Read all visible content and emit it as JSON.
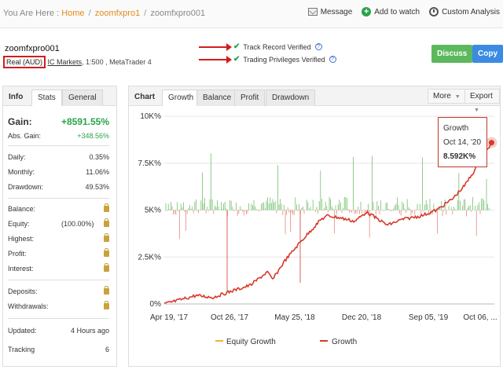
{
  "breadcrumb": {
    "prefix": "You Are Here :",
    "home": "Home",
    "section": "zoomfxpro1",
    "current": "zoomfxpro001"
  },
  "top_actions": {
    "message": "Message",
    "add_watch": "Add to watch",
    "custom_analysis": "Custom Analysis"
  },
  "account": {
    "name": "zoomfxpro001",
    "type": "Real (AUD)",
    "broker": "IC Markets",
    "details": ", 1:500 , MetaTrader 4"
  },
  "verification": {
    "track_record": "Track Record Verified",
    "trading_privileges": "Trading Privileges Verified"
  },
  "buttons": {
    "discuss": "Discuss",
    "copy": "Copy"
  },
  "stats_tabs": [
    "Info",
    "Stats",
    "General"
  ],
  "stats": {
    "gain_label": "Gain:",
    "gain_value": "+8591.55%",
    "abs_gain_label": "Abs. Gain:",
    "abs_gain_value": "+348.56%",
    "daily_label": "Daily:",
    "daily_value": "0.35%",
    "monthly_label": "Monthly:",
    "monthly_value": "11.06%",
    "drawdown_label": "Drawdown:",
    "drawdown_value": "49.53%",
    "balance_label": "Balance:",
    "equity_label": "Equity:",
    "equity_value": "(100.00%)",
    "highest_label": "Highest:",
    "profit_label": "Profit:",
    "interest_label": "Interest:",
    "deposits_label": "Deposits:",
    "withdrawals_label": "Withdrawals:",
    "updated_label": "Updated:",
    "updated_value": "4 Hours ago",
    "tracking_label": "Tracking",
    "tracking_value": "6"
  },
  "chart_tabs": [
    "Chart",
    "Growth",
    "Balance",
    "Profit",
    "Drawdown"
  ],
  "chart_tools": {
    "more": "More",
    "export": "Export"
  },
  "tooltip": {
    "series": "Growth",
    "date": "Oct 14, '20",
    "value": "8.592K%"
  },
  "colors": {
    "growth": "#d63a2a",
    "equity": "#f0b432",
    "bars": "#5db653",
    "gain": "#2aa34a"
  },
  "chart_data": {
    "type": "line",
    "title": "",
    "xlabel": "",
    "ylabel": "",
    "ylim": [
      0,
      10000
    ],
    "y_ticks": [
      "0%",
      "2.5K%",
      "5K%",
      "7.5K%",
      "10K%"
    ],
    "x_ticks": [
      "Apr 19, '17",
      "Oct 26, '17",
      "May 25, '18",
      "Dec 20, '18",
      "Sep 05, '19",
      "Oct 06, ..."
    ],
    "legend": [
      "Equity Growth",
      "Growth"
    ],
    "legend_position": "bottom",
    "grid": true,
    "series": [
      {
        "name": "Growth",
        "x": [
          "2017-04-19",
          "2017-06-15",
          "2017-08-20",
          "2017-10-26",
          "2018-01-10",
          "2018-03-20",
          "2018-05-25",
          "2018-06-15",
          "2018-08-01",
          "2018-10-01",
          "2018-11-10",
          "2018-12-20",
          "2019-01-15",
          "2019-03-01",
          "2019-05-01",
          "2019-06-15",
          "2019-09-05",
          "2019-11-01",
          "2020-01-15",
          "2020-03-15",
          "2020-05-15",
          "2020-07-01",
          "2020-09-01",
          "2020-10-14"
        ],
        "y": [
          0,
          200,
          450,
          350,
          700,
          1000,
          1700,
          1300,
          2300,
          3300,
          3900,
          4500,
          4700,
          4600,
          4400,
          4900,
          4200,
          4500,
          4700,
          5000,
          5600,
          6300,
          7600,
          8592
        ]
      },
      {
        "name": "Equity Growth",
        "x": [
          "2017-04-19",
          "2020-10-14"
        ],
        "y": [
          0,
          8592
        ]
      }
    ]
  }
}
